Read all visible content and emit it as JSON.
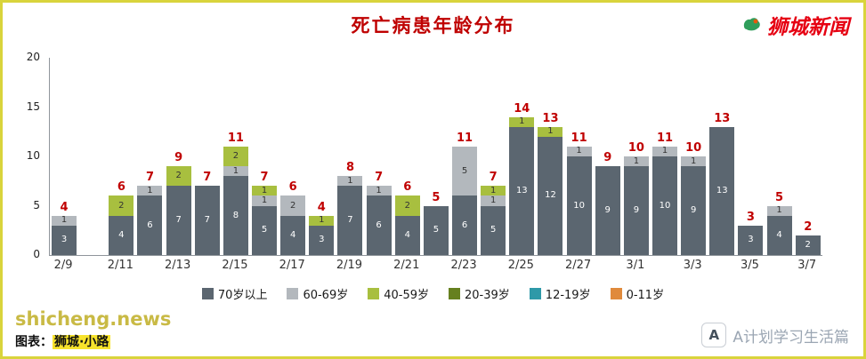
{
  "page": {
    "brand_name": "狮城新闻",
    "watermark": "shicheng.news",
    "credit_prefix": "图表：",
    "credit_name": "狮城·小路",
    "footer_brand": "A计划学习生活篇"
  },
  "colors": {
    "title_red": "#bf0000",
    "total_label_red": "#c00000",
    "frame_yellow": "#d9d43c",
    "brand_red": "#e60012",
    "watermark_yellow": "#c9ba45"
  },
  "chart_data": {
    "type": "bar",
    "stacked": true,
    "title": "死亡病患年龄分布",
    "xlabel": "",
    "ylabel": "",
    "ylim": [
      0,
      20
    ],
    "yticks": [
      0,
      5,
      10,
      15,
      20
    ],
    "grid": false,
    "legend_position": "bottom",
    "series": [
      {
        "name": "70岁以上",
        "color": "#5b6670",
        "label_color": "#ffffff"
      },
      {
        "name": "60-69岁",
        "color": "#b3b8bd",
        "label_color": "#333333"
      },
      {
        "name": "40-59岁",
        "color": "#a8bf3f",
        "label_color": "#333333"
      },
      {
        "name": "20-39岁",
        "color": "#66801f",
        "label_color": "#ffffff"
      },
      {
        "name": "12-19岁",
        "color": "#2e99a8",
        "label_color": "#ffffff"
      },
      {
        "name": "0-11岁",
        "color": "#e08a3c",
        "label_color": "#ffffff"
      }
    ],
    "bars": [
      {
        "date": "2/9",
        "show_date": true,
        "values": [
          3,
          1,
          0,
          0,
          0,
          0
        ],
        "total": 4
      },
      {
        "date": "2/10",
        "show_date": false,
        "values": [
          0,
          0,
          0,
          0,
          0,
          0
        ],
        "total": 0
      },
      {
        "date": "2/11",
        "show_date": true,
        "values": [
          4,
          0,
          2,
          0,
          0,
          0
        ],
        "total": 6
      },
      {
        "date": "2/12",
        "show_date": false,
        "values": [
          6,
          1,
          0,
          0,
          0,
          0
        ],
        "total": 7
      },
      {
        "date": "2/13",
        "show_date": true,
        "values": [
          7,
          0,
          2,
          0,
          0,
          0
        ],
        "total": 9
      },
      {
        "date": "2/14",
        "show_date": false,
        "values": [
          7,
          0,
          0,
          0,
          0,
          0
        ],
        "total": 7
      },
      {
        "date": "2/15",
        "show_date": true,
        "values": [
          8,
          1,
          2,
          0,
          0,
          0
        ],
        "total": 11
      },
      {
        "date": "2/16",
        "show_date": false,
        "values": [
          5,
          1,
          1,
          0,
          0,
          0
        ],
        "total": 7
      },
      {
        "date": "2/17",
        "show_date": true,
        "values": [
          4,
          2,
          0,
          0,
          0,
          0
        ],
        "total": 6
      },
      {
        "date": "2/18",
        "show_date": false,
        "values": [
          3,
          0,
          1,
          0,
          0,
          0
        ],
        "total": 4
      },
      {
        "date": "2/19",
        "show_date": true,
        "values": [
          7,
          1,
          0,
          0,
          0,
          0
        ],
        "total": 8
      },
      {
        "date": "2/20",
        "show_date": false,
        "values": [
          6,
          1,
          0,
          0,
          0,
          0
        ],
        "total": 7
      },
      {
        "date": "2/21",
        "show_date": true,
        "values": [
          4,
          0,
          2,
          0,
          0,
          0
        ],
        "total": 6
      },
      {
        "date": "2/22",
        "show_date": false,
        "values": [
          5,
          0,
          0,
          0,
          0,
          0
        ],
        "total": 5
      },
      {
        "date": "2/23",
        "show_date": true,
        "values": [
          6,
          5,
          0,
          0,
          0,
          0
        ],
        "total": 11
      },
      {
        "date": "2/24",
        "show_date": false,
        "values": [
          5,
          1,
          1,
          0,
          0,
          0
        ],
        "total": 7
      },
      {
        "date": "2/25",
        "show_date": true,
        "values": [
          13,
          0,
          1,
          0,
          0,
          0
        ],
        "total": 14
      },
      {
        "date": "2/26",
        "show_date": false,
        "values": [
          12,
          0,
          1,
          0,
          0,
          0
        ],
        "total": 13
      },
      {
        "date": "2/27",
        "show_date": true,
        "values": [
          10,
          1,
          0,
          0,
          0,
          0
        ],
        "total": 11
      },
      {
        "date": "2/28",
        "show_date": false,
        "values": [
          9,
          0,
          0,
          0,
          0,
          0
        ],
        "total": 9
      },
      {
        "date": "3/1",
        "show_date": true,
        "values": [
          9,
          1,
          0,
          0,
          0,
          0
        ],
        "total": 10
      },
      {
        "date": "3/2",
        "show_date": false,
        "values": [
          10,
          1,
          0,
          0,
          0,
          0
        ],
        "total": 11
      },
      {
        "date": "3/3",
        "show_date": true,
        "values": [
          9,
          1,
          0,
          0,
          0,
          0
        ],
        "total": 10
      },
      {
        "date": "3/4",
        "show_date": false,
        "values": [
          13,
          0,
          0,
          0,
          0,
          0
        ],
        "total": 13
      },
      {
        "date": "3/5",
        "show_date": true,
        "values": [
          3,
          0,
          0,
          0,
          0,
          0
        ],
        "total": 3
      },
      {
        "date": "3/6",
        "show_date": false,
        "values": [
          4,
          1,
          0,
          0,
          0,
          0
        ],
        "total": 5
      },
      {
        "date": "3/7",
        "show_date": true,
        "values": [
          2,
          0,
          0,
          0,
          0,
          0
        ],
        "total": 2
      }
    ]
  }
}
